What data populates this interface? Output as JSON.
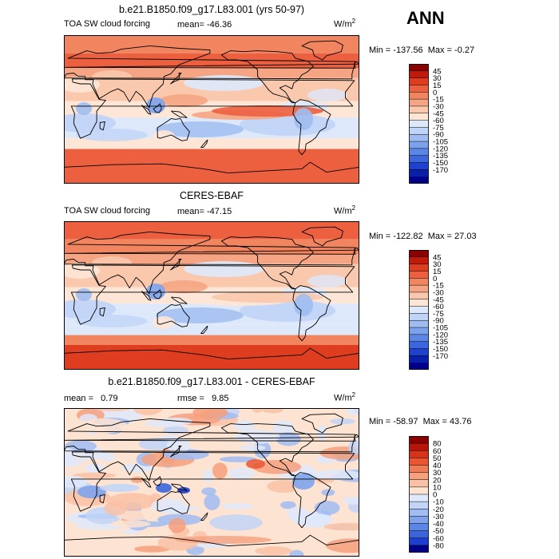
{
  "season": "ANN",
  "units": "W/m",
  "units_sup": "2",
  "panels": [
    {
      "title": "b.e21.B1850.f09_g17.L83.001 (yrs 50-97)",
      "left_label": "TOA SW cloud forcing",
      "stat_label": "mean=",
      "stat_value": "-46.36",
      "min_label": "Min =",
      "min_value": "-137.56",
      "max_label": "Max =",
      "max_value": "-0.27",
      "colorbar_labels": [
        "45",
        "30",
        "15",
        "0",
        "-15",
        "-30",
        "-45",
        "-60",
        "-75",
        "-90",
        "-105",
        "-120",
        "-135",
        "-150",
        "-170"
      ],
      "colorbar_colors": [
        "#8b0000",
        "#c01a0c",
        "#de3d1f",
        "#ec6040",
        "#f1855f",
        "#f5a583",
        "#fac8ad",
        "#fde6d6",
        "#dde9fb",
        "#c0d4f7",
        "#9fbcf1",
        "#7da2ec",
        "#5a86e6",
        "#3b66dd",
        "#1e42cf",
        "#0a1fa8",
        "#00008b"
      ]
    },
    {
      "title": "CERES-EBAF",
      "left_label": "TOA SW cloud forcing",
      "stat_label": "mean=",
      "stat_value": "-47.15",
      "min_label": "Min =",
      "min_value": "-122.82",
      "max_label": "Max =",
      "max_value": "27.03",
      "colorbar_labels": [
        "45",
        "30",
        "15",
        "0",
        "-15",
        "-30",
        "-45",
        "-60",
        "-75",
        "-90",
        "-105",
        "-120",
        "-135",
        "-150",
        "-170"
      ],
      "colorbar_colors": [
        "#8b0000",
        "#c01a0c",
        "#de3d1f",
        "#ec6040",
        "#f1855f",
        "#f5a583",
        "#fac8ad",
        "#fde6d6",
        "#dde9fb",
        "#c0d4f7",
        "#9fbcf1",
        "#7da2ec",
        "#5a86e6",
        "#3b66dd",
        "#1e42cf",
        "#0a1fa8",
        "#00008b"
      ]
    },
    {
      "title": "b.e21.B1850.f09_g17.L83.001 - CERES-EBAF",
      "mean_label": "mean =",
      "mean_value": "0.79",
      "rmse_label": "rmse =",
      "rmse_value": "9.85",
      "min_label": "Min =",
      "min_value": "-58.97",
      "max_label": "Max =",
      "max_value": "43.76",
      "colorbar_labels": [
        "80",
        "60",
        "50",
        "40",
        "30",
        "20",
        "10",
        "0",
        "-10",
        "-20",
        "-30",
        "-40",
        "-50",
        "-60",
        "-80"
      ],
      "colorbar_colors": [
        "#8b0000",
        "#b8150a",
        "#d83319",
        "#ea5533",
        "#f07c55",
        "#f5a07e",
        "#f9c2a6",
        "#fde3d2",
        "#dfe9fb",
        "#c2d5f7",
        "#a0bcf2",
        "#7ea3ec",
        "#5b86e6",
        "#3a65dc",
        "#1c40cd",
        "#00008b"
      ]
    }
  ]
}
